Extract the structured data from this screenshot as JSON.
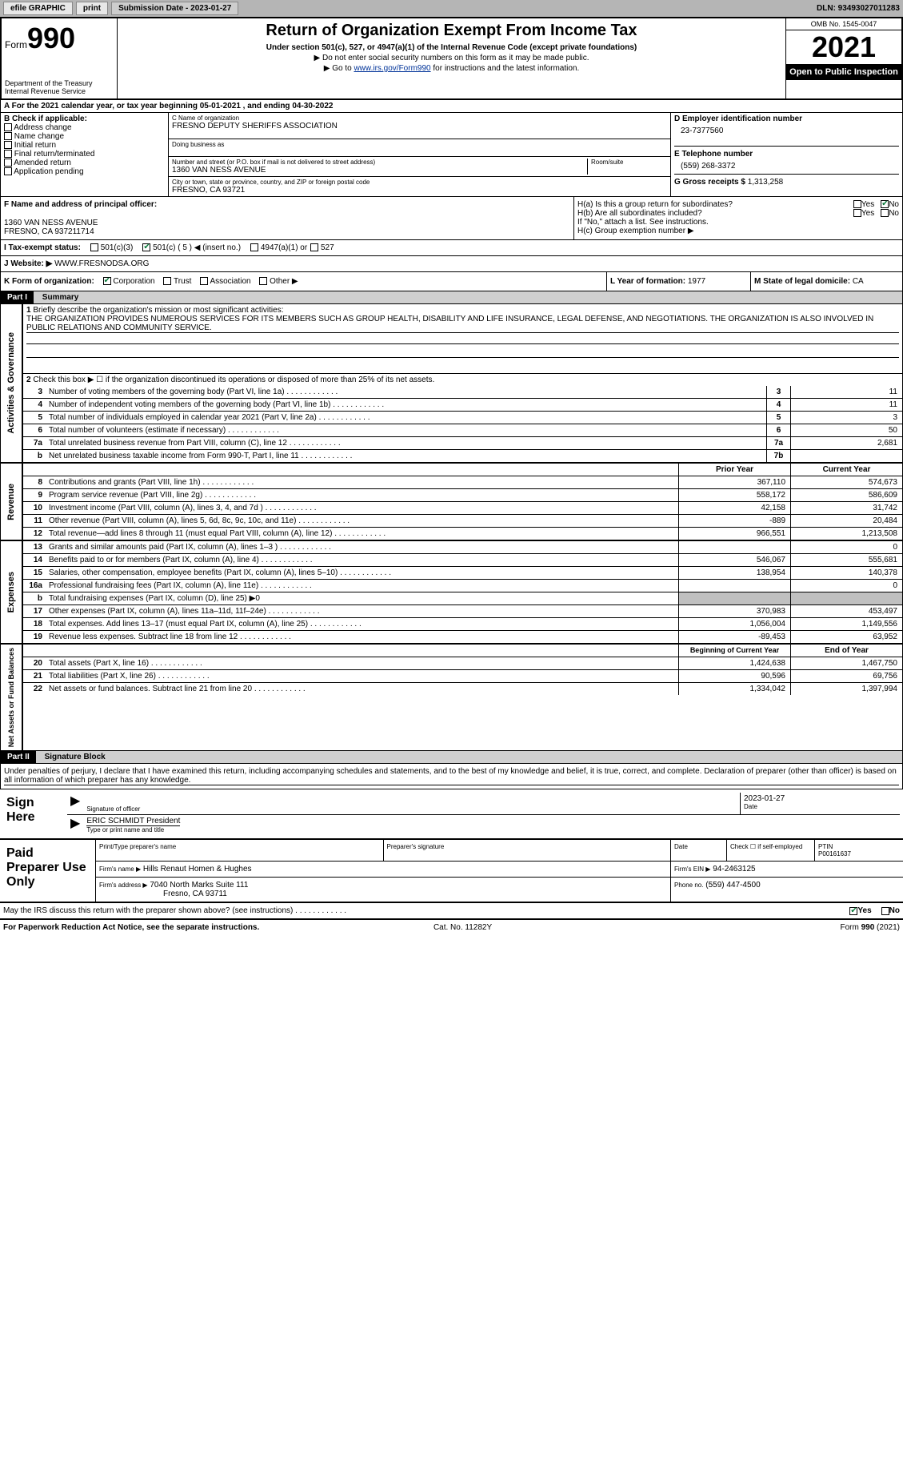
{
  "topbar": {
    "efile": "efile GRAPHIC",
    "print": "print",
    "submission": "Submission Date - 2023-01-27",
    "dln": "DLN: 93493027011283"
  },
  "header": {
    "form": "Form",
    "num": "990",
    "title": "Return of Organization Exempt From Income Tax",
    "sub1": "Under section 501(c), 527, or 4947(a)(1) of the Internal Revenue Code (except private foundations)",
    "sub2": "▶ Do not enter social security numbers on this form as it may be made public.",
    "sub3": "▶ Go to ",
    "sub3_link": "www.irs.gov/Form990",
    "sub3_after": " for instructions and the latest information.",
    "dept": "Department of the Treasury",
    "irs": "Internal Revenue Service",
    "omb": "OMB No. 1545-0047",
    "year": "2021",
    "open": "Open to Public Inspection"
  },
  "line_a": "A For the 2021 calendar year, or tax year beginning 05-01-2021    , and ending 04-30-2022",
  "col_b": {
    "title": "B Check if applicable:",
    "items": [
      "Address change",
      "Name change",
      "Initial return",
      "Final return/terminated",
      "Amended return",
      "Application pending"
    ]
  },
  "col_c": {
    "name_lbl": "C Name of organization",
    "name": "FRESNO DEPUTY SHERIFFS ASSOCIATION",
    "dba_lbl": "Doing business as",
    "dba": "",
    "addr_lbl": "Number and street (or P.O. box if mail is not delivered to street address)",
    "addr": "1360 VAN NESS AVENUE",
    "room_lbl": "Room/suite",
    "city_lbl": "City or town, state or province, country, and ZIP or foreign postal code",
    "city": "FRESNO, CA  93721"
  },
  "col_d": {
    "ein_lbl": "D Employer identification number",
    "ein": "23-7377560",
    "tel_lbl": "E Telephone number",
    "tel": "(559) 268-3372",
    "gross_lbl": "G Gross receipts $",
    "gross": "1,313,258"
  },
  "section_f": {
    "f_lbl": "F Name and address of principal officer:",
    "f_addr1": "1360 VAN NESS AVENUE",
    "f_addr2": "FRESNO, CA  937211714"
  },
  "section_h": {
    "ha": "H(a)  Is this a group return for subordinates?",
    "hb": "H(b)  Are all subordinates included?",
    "hb_note": "If \"No,\" attach a list. See instructions.",
    "hc": "H(c)  Group exemption number ▶",
    "yes": "Yes",
    "no": "No"
  },
  "line_i": {
    "lbl": "I    Tax-exempt status:",
    "opt1": "501(c)(3)",
    "opt2": "501(c) ( 5 ) ◀ (insert no.)",
    "opt3": "4947(a)(1) or",
    "opt4": "527"
  },
  "line_j": {
    "lbl": "J    Website: ▶",
    "val": "WWW.FRESNODSA.ORG"
  },
  "line_k": {
    "lbl": "K Form of organization:",
    "opts": [
      "Corporation",
      "Trust",
      "Association",
      "Other ▶"
    ],
    "l_lbl": "L Year of formation:",
    "l_val": "1977",
    "m_lbl": "M State of legal domicile:",
    "m_val": "CA"
  },
  "part1": {
    "hdr": "Part I",
    "title": "Summary",
    "line1_lbl": "1",
    "line1": "Briefly describe the organization's mission or most significant activities:",
    "line1_text": "THE ORGANIZATION PROVIDES NUMEROUS SERVICES FOR ITS MEMBERS SUCH AS GROUP HEALTH, DISABILITY AND LIFE INSURANCE, LEGAL DEFENSE, AND NEGOTIATIONS. THE ORGANIZATION IS ALSO INVOLVED IN PUBLIC RELATIONS AND COMMUNITY SERVICE.",
    "side_activities": "Activities & Governance",
    "side_revenue": "Revenue",
    "side_expenses": "Expenses",
    "side_net": "Net Assets or Fund Balances",
    "line2": "Check this box ▶ ☐ if the organization discontinued its operations or disposed of more than 25% of its net assets.",
    "rows_single": [
      {
        "n": "3",
        "d": "Number of voting members of the governing body (Part VI, line 1a)",
        "bn": "3",
        "v": "11"
      },
      {
        "n": "4",
        "d": "Number of independent voting members of the governing body (Part VI, line 1b)",
        "bn": "4",
        "v": "11"
      },
      {
        "n": "5",
        "d": "Total number of individuals employed in calendar year 2021 (Part V, line 2a)",
        "bn": "5",
        "v": "3"
      },
      {
        "n": "6",
        "d": "Total number of volunteers (estimate if necessary)",
        "bn": "6",
        "v": "50"
      },
      {
        "n": "7a",
        "d": "Total unrelated business revenue from Part VIII, column (C), line 12",
        "bn": "7a",
        "v": "2,681"
      },
      {
        "n": "b",
        "d": "Net unrelated business taxable income from Form 990-T, Part I, line 11",
        "bn": "7b",
        "v": ""
      }
    ],
    "col_hdr_prior": "Prior Year",
    "col_hdr_current": "Current Year",
    "rows_rev": [
      {
        "n": "8",
        "d": "Contributions and grants (Part VIII, line 1h)",
        "p": "367,110",
        "c": "574,673"
      },
      {
        "n": "9",
        "d": "Program service revenue (Part VIII, line 2g)",
        "p": "558,172",
        "c": "586,609"
      },
      {
        "n": "10",
        "d": "Investment income (Part VIII, column (A), lines 3, 4, and 7d )",
        "p": "42,158",
        "c": "31,742"
      },
      {
        "n": "11",
        "d": "Other revenue (Part VIII, column (A), lines 5, 6d, 8c, 9c, 10c, and 11e)",
        "p": "-889",
        "c": "20,484"
      },
      {
        "n": "12",
        "d": "Total revenue—add lines 8 through 11 (must equal Part VIII, column (A), line 12)",
        "p": "966,551",
        "c": "1,213,508"
      }
    ],
    "rows_exp": [
      {
        "n": "13",
        "d": "Grants and similar amounts paid (Part IX, column (A), lines 1–3 )",
        "p": "",
        "c": "0"
      },
      {
        "n": "14",
        "d": "Benefits paid to or for members (Part IX, column (A), line 4)",
        "p": "546,067",
        "c": "555,681"
      },
      {
        "n": "15",
        "d": "Salaries, other compensation, employee benefits (Part IX, column (A), lines 5–10)",
        "p": "138,954",
        "c": "140,378"
      },
      {
        "n": "16a",
        "d": "Professional fundraising fees (Part IX, column (A), line 11e)",
        "p": "",
        "c": "0"
      },
      {
        "n": "b",
        "d": "Total fundraising expenses (Part IX, column (D), line 25) ▶0",
        "p": "grey",
        "c": "grey"
      },
      {
        "n": "17",
        "d": "Other expenses (Part IX, column (A), lines 11a–11d, 11f–24e)",
        "p": "370,983",
        "c": "453,497"
      },
      {
        "n": "18",
        "d": "Total expenses. Add lines 13–17 (must equal Part IX, column (A), line 25)",
        "p": "1,056,004",
        "c": "1,149,556"
      },
      {
        "n": "19",
        "d": "Revenue less expenses. Subtract line 18 from line 12",
        "p": "-89,453",
        "c": "63,952"
      }
    ],
    "col_hdr_begin": "Beginning of Current Year",
    "col_hdr_end": "End of Year",
    "rows_net": [
      {
        "n": "20",
        "d": "Total assets (Part X, line 16)",
        "p": "1,424,638",
        "c": "1,467,750"
      },
      {
        "n": "21",
        "d": "Total liabilities (Part X, line 26)",
        "p": "90,596",
        "c": "69,756"
      },
      {
        "n": "22",
        "d": "Net assets or fund balances. Subtract line 21 from line 20",
        "p": "1,334,042",
        "c": "1,397,994"
      }
    ]
  },
  "part2": {
    "hdr": "Part II",
    "title": "Signature Block",
    "decl": "Under penalties of perjury, I declare that I have examined this return, including accompanying schedules and statements, and to the best of my knowledge and belief, it is true, correct, and complete. Declaration of preparer (other than officer) is based on all information of which preparer has any knowledge."
  },
  "sign": {
    "lbl": "Sign Here",
    "sig_lbl": "Signature of officer",
    "date_lbl": "Date",
    "date": "2023-01-27",
    "name": "ERIC SCHMIDT President",
    "name_lbl": "Type or print name and title"
  },
  "paid": {
    "lbl": "Paid Preparer Use Only",
    "r1": {
      "a": "Print/Type preparer's name",
      "b": "Preparer's signature",
      "c": "Date",
      "d": "Check ☐ if self-employed",
      "e": "PTIN",
      "e_val": "P00161637"
    },
    "r2": {
      "a": "Firm's name     ▶",
      "a_val": "Hills Renaut Homen & Hughes",
      "b": "Firm's EIN ▶",
      "b_val": "94-2463125"
    },
    "r3": {
      "a": "Firm's address ▶",
      "a_val": "7040 North Marks Suite 111",
      "a_val2": "Fresno, CA  93711",
      "b": "Phone no.",
      "b_val": "(559) 447-4500"
    }
  },
  "discuss": {
    "q": "May the IRS discuss this return with the preparer shown above? (see instructions)",
    "yes": "Yes",
    "no": "No"
  },
  "footer": {
    "l": "For Paperwork Reduction Act Notice, see the separate instructions.",
    "m": "Cat. No. 11282Y",
    "r": "Form 990 (2021)"
  }
}
